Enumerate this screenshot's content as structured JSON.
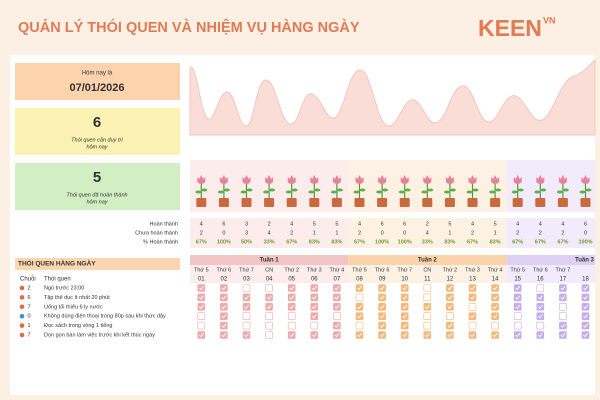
{
  "header": {
    "title": "QUẢN LÝ THÓI QUEN VÀ NHIỆM VỤ HÀNG NGÀY",
    "logo": "KEEN",
    "logo_sup": "VN"
  },
  "cards": [
    {
      "label": [
        "Hôm nay là"
      ],
      "value": "07/01/2026",
      "color": "#fcd3ad"
    },
    {
      "value": "6",
      "label": [
        "Thói quen cần duy trì",
        "hôm nay"
      ],
      "color": "#fbf1b2"
    },
    {
      "value": "5",
      "label": [
        "Thói quen đã hoàn thành",
        "hôm nay"
      ],
      "color": "#d2efc4"
    }
  ],
  "stats": {
    "rows": [
      {
        "label": "Hoàn thành",
        "values": [
          4,
          6,
          3,
          2,
          4,
          5,
          5,
          4,
          6,
          6,
          2,
          5,
          4,
          5,
          4,
          4,
          4,
          6
        ]
      },
      {
        "label": "Chưa hoàn thành",
        "values": [
          2,
          0,
          3,
          4,
          2,
          1,
          1,
          2,
          0,
          0,
          4,
          1,
          2,
          1,
          2,
          2,
          2,
          0
        ]
      },
      {
        "label": "% Hoàn thành",
        "values": [
          "67%",
          "100%",
          "50%",
          "33%",
          "67%",
          "83%",
          "83%",
          "67%",
          "100%",
          "100%",
          "33%",
          "83%",
          "67%",
          "83%",
          "67%",
          "67%",
          "67%",
          "100%"
        ]
      }
    ]
  },
  "weeks": [
    {
      "label": "Tuần 1",
      "color": "#f3c4c4",
      "light": "#fcecec",
      "check": "#eeaaaa",
      "days": [
        {
          "weekday": "Thứ 5",
          "date": "01"
        },
        {
          "weekday": "Thứ 6",
          "date": "02"
        },
        {
          "weekday": "Thứ 7",
          "date": "03"
        },
        {
          "weekday": "CN",
          "date": "04"
        },
        {
          "weekday": "Thứ 2",
          "date": "05"
        },
        {
          "weekday": "Thứ 3",
          "date": "06"
        },
        {
          "weekday": "Thứ 4",
          "date": "07"
        }
      ]
    },
    {
      "label": "Tuần 2",
      "color": "#fad3aa",
      "light": "#fdf1e3",
      "check": "#f5b77a",
      "days": [
        {
          "weekday": "Thứ 5",
          "date": "08"
        },
        {
          "weekday": "Thứ 6",
          "date": "09"
        },
        {
          "weekday": "Thứ 7",
          "date": "10"
        },
        {
          "weekday": "CN",
          "date": "11"
        },
        {
          "weekday": "Thứ 2",
          "date": "12"
        },
        {
          "weekday": "Thứ 3",
          "date": "13"
        },
        {
          "weekday": "Thứ 4",
          "date": "14"
        }
      ]
    },
    {
      "label": "Tuần 3",
      "color": "#ddd0f3",
      "light": "#f1ebfb",
      "check": "#c4adec",
      "days": [
        {
          "weekday": "Thứ 5",
          "date": "15"
        },
        {
          "weekday": "Thứ 6",
          "date": "16"
        },
        {
          "weekday": "Thứ 7",
          "date": "17"
        },
        {
          "weekday": null,
          "date": "18"
        }
      ]
    }
  ],
  "habits": {
    "title": "THÓI QUEN HÀNG NGÀY",
    "columns": [
      "Chuỗi",
      "Thói quen"
    ],
    "rows": [
      {
        "streak": 2,
        "name": "Ngủ trước 23:00",
        "icon_color": "#e8663d",
        "checks": [
          1,
          1,
          0,
          0,
          1,
          1,
          1,
          1,
          1,
          1,
          0,
          1,
          1,
          1,
          1,
          0,
          1,
          1
        ]
      },
      {
        "streak": 6,
        "name": "Tập thể dục ít nhất 20 phút",
        "icon_color": "#e8663d",
        "checks": [
          1,
          1,
          1,
          1,
          1,
          1,
          1,
          0,
          1,
          1,
          0,
          1,
          1,
          1,
          1,
          1,
          1,
          1
        ]
      },
      {
        "streak": 7,
        "name": "Uống tối thiểu 6 ly nước",
        "icon_color": "#e8663d",
        "checks": [
          1,
          1,
          1,
          1,
          1,
          1,
          1,
          1,
          1,
          1,
          1,
          1,
          0,
          1,
          1,
          1,
          0,
          1
        ]
      },
      {
        "streak": 0,
        "name": "Không dùng điện thoại trong 80p sau khi thức dậy",
        "icon_color": "#3b8fd9",
        "checks": [
          0,
          1,
          0,
          0,
          0,
          1,
          0,
          1,
          1,
          1,
          0,
          0,
          1,
          1,
          0,
          1,
          0,
          1
        ]
      },
      {
        "streak": 1,
        "name": "Đọc sách trong vòng 1 tiếng",
        "icon_color": "#e8663d",
        "checks": [
          0,
          1,
          0,
          0,
          0,
          0,
          1,
          0,
          1,
          1,
          0,
          1,
          0,
          0,
          0,
          0,
          1,
          1
        ]
      },
      {
        "streak": 7,
        "name": "Dọn gọn bàn làm việc trước khi kết thúc ngày",
        "icon_color": "#e8663d",
        "checks": [
          1,
          1,
          1,
          0,
          1,
          1,
          1,
          1,
          1,
          1,
          1,
          1,
          1,
          1,
          1,
          1,
          1,
          1
        ]
      }
    ]
  }
}
